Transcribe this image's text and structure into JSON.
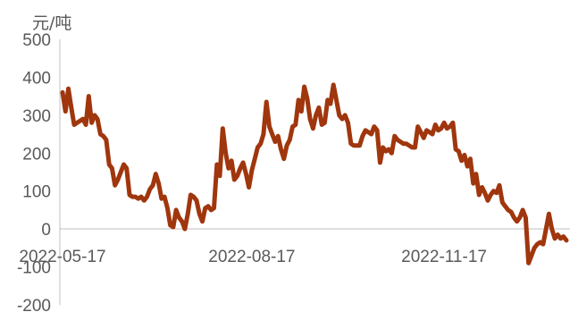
{
  "chart_data": {
    "type": "line",
    "title": "",
    "ylabel": "元/吨",
    "xlabel": "",
    "ylim": [
      -200,
      500
    ],
    "yticks": [
      "500",
      "400",
      "300",
      "200",
      "100",
      "0",
      "-100",
      "-200"
    ],
    "ytick_values": [
      500,
      400,
      300,
      200,
      100,
      0,
      -100,
      -200
    ],
    "xticks": [
      "2022-05-17",
      "2022-08-17",
      "2022-11-17"
    ],
    "xtick_index": [
      0,
      65,
      131
    ],
    "grid": false,
    "legend": "none",
    "color": "#a0360d",
    "series": [
      {
        "values": [
          360,
          310,
          370,
          320,
          275,
          280,
          285,
          290,
          275,
          350,
          280,
          300,
          290,
          250,
          245,
          235,
          170,
          160,
          115,
          130,
          150,
          170,
          160,
          90,
          85,
          85,
          80,
          85,
          75,
          85,
          105,
          115,
          145,
          120,
          80,
          85,
          55,
          10,
          5,
          50,
          30,
          20,
          0,
          40,
          90,
          85,
          75,
          40,
          20,
          55,
          60,
          50,
          55,
          170,
          140,
          265,
          200,
          160,
          180,
          130,
          140,
          160,
          175,
          145,
          110,
          155,
          185,
          215,
          225,
          250,
          335,
          270,
          250,
          230,
          245,
          210,
          185,
          220,
          235,
          270,
          275,
          340,
          310,
          375,
          345,
          290,
          265,
          300,
          320,
          275,
          280,
          340,
          330,
          380,
          340,
          300,
          290,
          300,
          280,
          225,
          220,
          220,
          220,
          245,
          260,
          255,
          250,
          270,
          260,
          175,
          215,
          205,
          210,
          200,
          245,
          235,
          230,
          225,
          225,
          220,
          215,
          215,
          270,
          255,
          240,
          260,
          255,
          250,
          275,
          260,
          265,
          280,
          265,
          270,
          280,
          210,
          205,
          180,
          195,
          165,
          185,
          120,
          145,
          90,
          110,
          95,
          75,
          90,
          100,
          95,
          115,
          70,
          60,
          50,
          45,
          30,
          20,
          30,
          50,
          30,
          -90,
          -70,
          -50,
          -40,
          -35,
          -40,
          0,
          40,
          0,
          -25,
          -15,
          -25,
          -20,
          -30
        ]
      }
    ]
  }
}
